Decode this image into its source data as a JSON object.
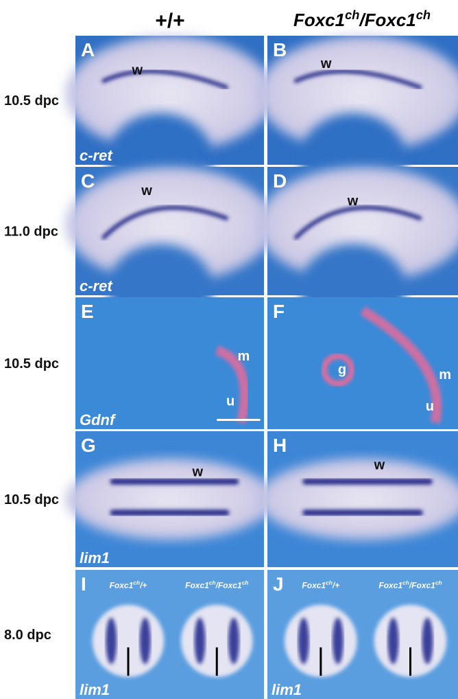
{
  "headers": [
    [
      {
        "text": "+/+"
      }
    ],
    [
      {
        "text": "Foxc1"
      },
      {
        "text": "ch",
        "sup": true
      },
      {
        "text": "/Foxc1"
      },
      {
        "text": "ch",
        "sup": true
      }
    ]
  ],
  "rows": [
    {
      "stage": "10.5 dpc",
      "panels": [
        {
          "letter": "A",
          "gene": "c-ret",
          "labels": [
            "w"
          ]
        },
        {
          "letter": "B",
          "labels": [
            "w"
          ]
        }
      ]
    },
    {
      "stage": "11.0 dpc",
      "panels": [
        {
          "letter": "C",
          "gene": "c-ret",
          "labels": [
            "w"
          ]
        },
        {
          "letter": "D",
          "labels": [
            "w"
          ]
        }
      ]
    },
    {
      "stage": "10.5 dpc",
      "panels": [
        {
          "letter": "E",
          "gene": "Gdnf",
          "labels": [
            "m",
            "u"
          ]
        },
        {
          "letter": "F",
          "labels": [
            "g",
            "m",
            "u"
          ]
        }
      ]
    },
    {
      "stage": "10.5 dpc",
      "panels": [
        {
          "letter": "G",
          "gene": "lim1",
          "labels": [
            "w"
          ]
        },
        {
          "letter": "H",
          "labels": [
            "w"
          ]
        }
      ]
    },
    {
      "stage": "8.0 dpc",
      "panels": [
        {
          "letter": "I",
          "gene": "lim1",
          "genotypes": [
            [
              {
                "text": "Foxc1"
              },
              {
                "text": "ch",
                "sup": true
              },
              {
                "text": "/+"
              }
            ],
            [
              {
                "text": "Foxc1"
              },
              {
                "text": "ch",
                "sup": true
              },
              {
                "text": "/Foxc1"
              },
              {
                "text": "ch",
                "sup": true
              }
            ]
          ]
        },
        {
          "letter": "J",
          "gene": "lim1",
          "genotypes": [
            [
              {
                "text": "Foxc1"
              },
              {
                "text": "ch",
                "sup": true
              },
              {
                "text": "/+"
              }
            ],
            [
              {
                "text": "Foxc1"
              },
              {
                "text": "ch",
                "sup": true
              },
              {
                "text": "/Foxc1"
              },
              {
                "text": "ch",
                "sup": true
              }
            ]
          ]
        }
      ]
    }
  ]
}
